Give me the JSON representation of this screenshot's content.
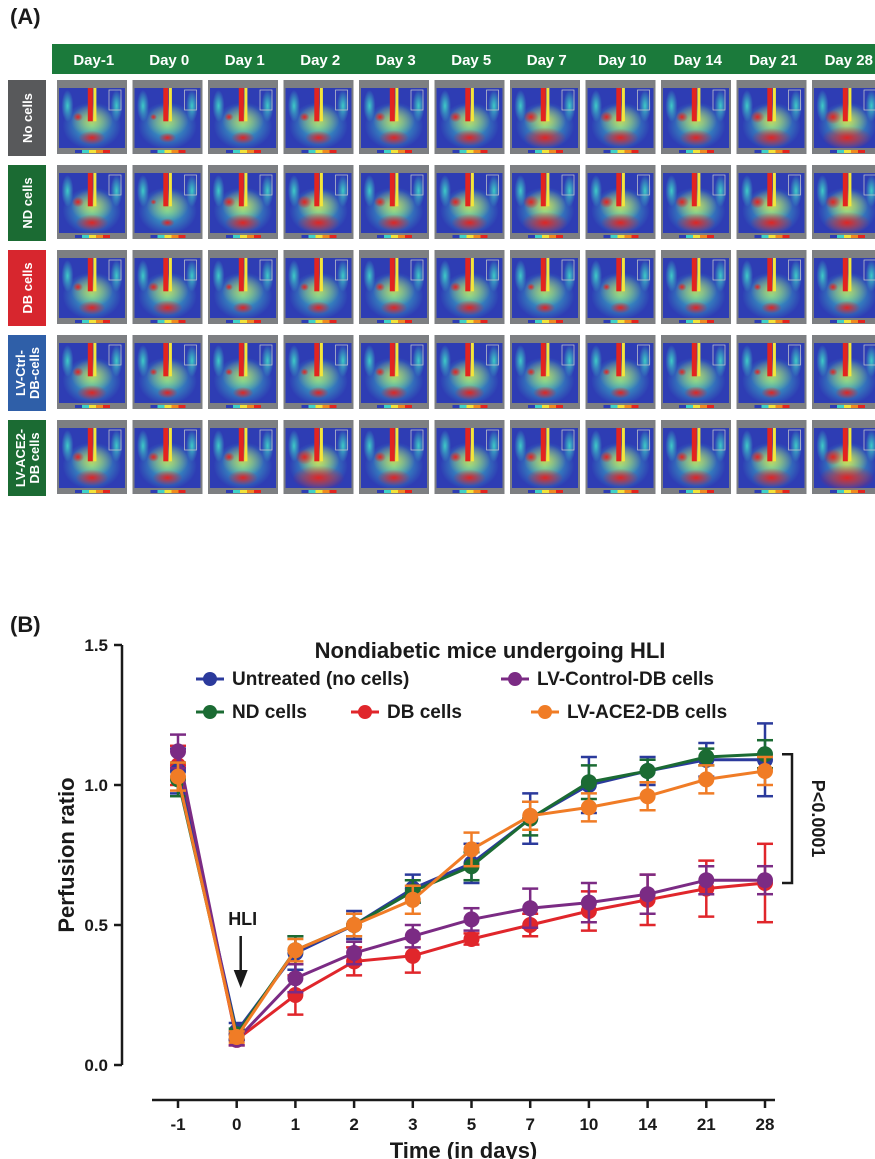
{
  "panel_a": {
    "label": "(A)",
    "columns": [
      "Day-1",
      "Day 0",
      "Day 1",
      "Day 2",
      "Day 3",
      "Day 5",
      "Day 7",
      "Day 10",
      "Day 14",
      "Day 21",
      "Day 28"
    ],
    "rows": [
      {
        "label": "No cells",
        "label_lines": [
          "No cells"
        ],
        "color": "#58595b"
      },
      {
        "label": "ND cells",
        "label_lines": [
          "ND cells"
        ],
        "color": "#1b6b33"
      },
      {
        "label": "DB cells",
        "label_lines": [
          "DB cells"
        ],
        "color": "#d7262e"
      },
      {
        "label": "LV-Ctrl-DB-cells",
        "label_lines": [
          "LV-Ctrl-",
          "DB-cells"
        ],
        "color": "#2f5fa8"
      },
      {
        "label": "LV-ACE2-DB cells",
        "label_lines": [
          "LV-ACE2-",
          "DB cells"
        ],
        "color": "#1b6b33"
      }
    ],
    "header_color": "#1b7a3b",
    "red_intensity": [
      [
        0.3,
        0.15,
        0.25,
        0.3,
        0.35,
        0.4,
        0.55,
        0.45,
        0.4,
        0.5,
        0.65
      ],
      [
        0.4,
        0.1,
        0.45,
        0.55,
        0.4,
        0.45,
        0.6,
        0.5,
        0.5,
        0.55,
        0.6
      ],
      [
        0.3,
        0.35,
        0.2,
        0.25,
        0.3,
        0.35,
        0.2,
        0.2,
        0.25,
        0.2,
        0.3
      ],
      [
        0.35,
        0.2,
        0.2,
        0.2,
        0.3,
        0.35,
        0.25,
        0.2,
        0.25,
        0.2,
        0.25
      ],
      [
        0.4,
        0.35,
        0.35,
        0.7,
        0.4,
        0.4,
        0.45,
        0.45,
        0.4,
        0.5,
        0.75
      ]
    ]
  },
  "panel_b": {
    "label": "(B)",
    "annotation_hli": "HLI",
    "annotation_p": "P<0.0001"
  },
  "chart_data": {
    "type": "line",
    "title": "Nondiabetic mice undergoing HLI",
    "xlabel": "Time (in days)",
    "ylabel": "Perfusion ratio",
    "categories": [
      "-1",
      "0",
      "1",
      "2",
      "3",
      "5",
      "7",
      "10",
      "14",
      "21",
      "28"
    ],
    "ylim": [
      0,
      1.5
    ],
    "yticks": [
      "0.0",
      "0.5",
      "1.0",
      "1.5"
    ],
    "legend_position": "top-center",
    "series": [
      {
        "name": "Untreated (no cells)",
        "color": "#2b3a9c",
        "values": [
          1.05,
          0.12,
          0.4,
          0.5,
          0.63,
          0.72,
          0.88,
          1.0,
          1.05,
          1.09,
          1.09
        ],
        "errors": [
          0.08,
          0.03,
          0.06,
          0.05,
          0.05,
          0.07,
          0.09,
          0.1,
          0.05,
          0.06,
          0.13
        ]
      },
      {
        "name": "ND cells",
        "color": "#1b6b33",
        "values": [
          1.02,
          0.11,
          0.41,
          0.5,
          0.62,
          0.71,
          0.88,
          1.01,
          1.05,
          1.1,
          1.11
        ],
        "errors": [
          0.06,
          0.02,
          0.05,
          0.04,
          0.04,
          0.05,
          0.06,
          0.06,
          0.04,
          0.03,
          0.05
        ]
      },
      {
        "name": "DB cells",
        "color": "#e0262b",
        "values": [
          1.07,
          0.09,
          0.25,
          0.37,
          0.39,
          0.45,
          0.5,
          0.55,
          0.59,
          0.63,
          0.65
        ],
        "errors": [
          0.07,
          0.02,
          0.07,
          0.05,
          0.06,
          0.02,
          0.04,
          0.07,
          0.09,
          0.1,
          0.14
        ]
      },
      {
        "name": "LV-Control-DB cells",
        "color": "#7b2b84",
        "values": [
          1.12,
          0.09,
          0.31,
          0.4,
          0.46,
          0.52,
          0.56,
          0.58,
          0.61,
          0.66,
          0.66
        ],
        "errors": [
          0.06,
          0.02,
          0.05,
          0.04,
          0.04,
          0.04,
          0.07,
          0.07,
          0.07,
          0.05,
          0.05
        ]
      },
      {
        "name": "LV-ACE2-DB cells",
        "color": "#f07c26",
        "values": [
          1.03,
          0.1,
          0.41,
          0.5,
          0.59,
          0.77,
          0.89,
          0.92,
          0.96,
          1.02,
          1.05
        ],
        "errors": [
          0.05,
          0.02,
          0.04,
          0.04,
          0.05,
          0.06,
          0.05,
          0.05,
          0.05,
          0.05,
          0.05
        ]
      }
    ]
  }
}
